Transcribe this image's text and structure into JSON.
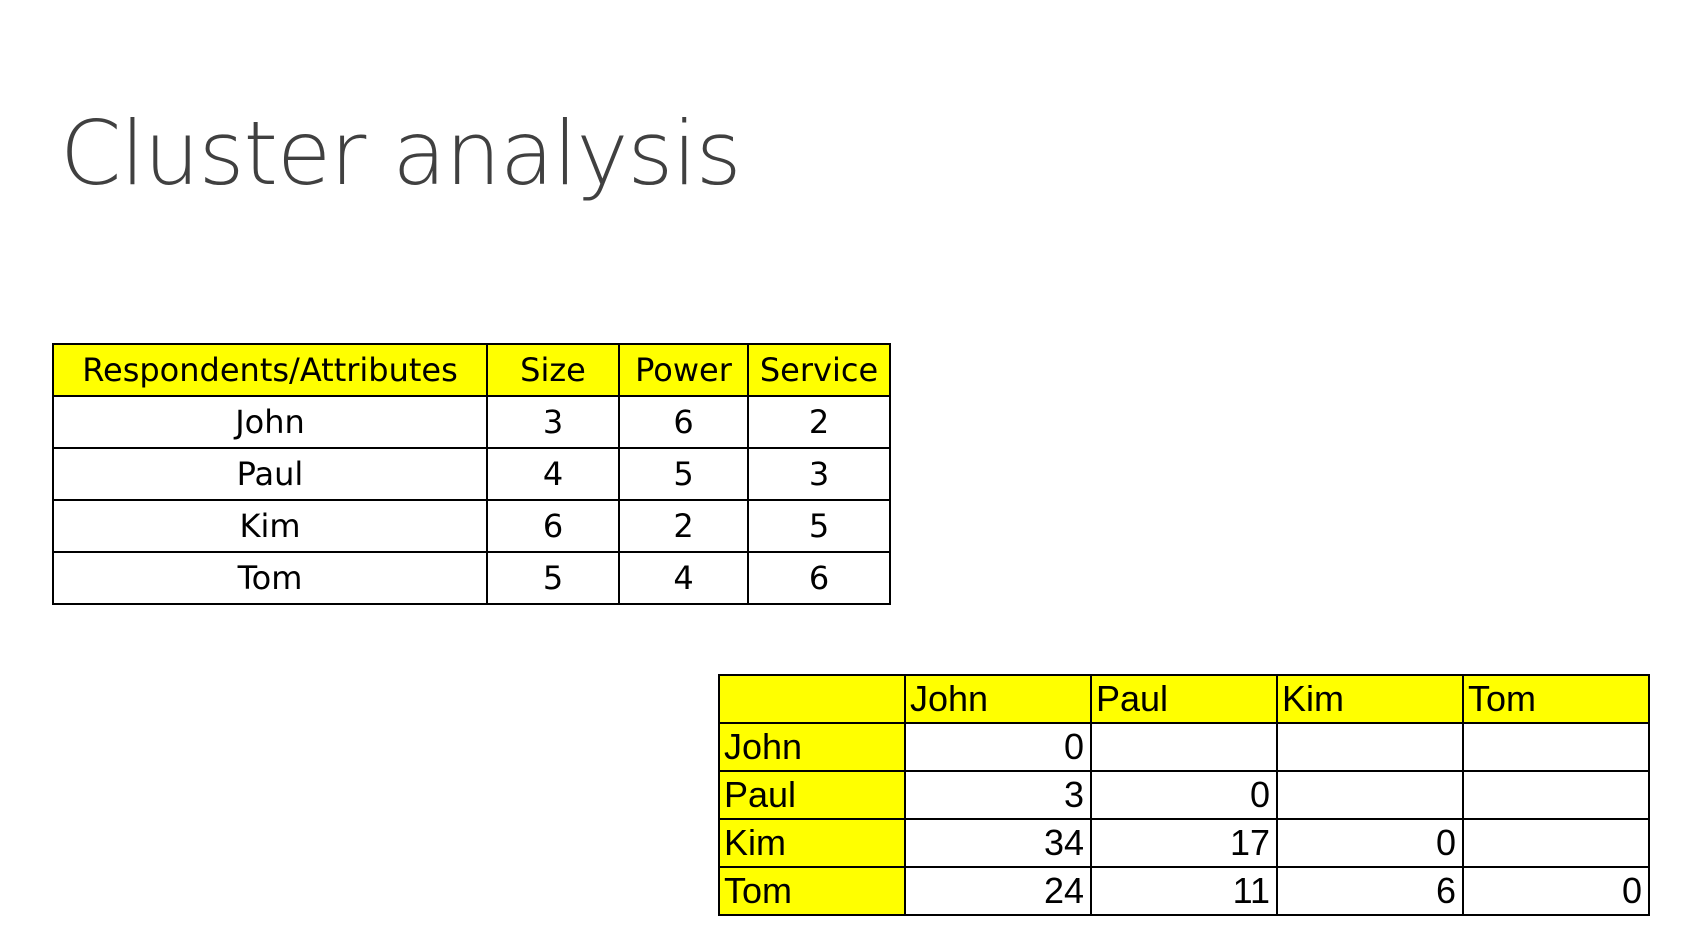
{
  "slide": {
    "title": "Cluster analysis"
  },
  "attributes_table": {
    "headers": [
      "Respondents/Attributes",
      "Size",
      "Power",
      "Service"
    ],
    "rows": [
      [
        "John",
        "3",
        "6",
        "2"
      ],
      [
        "Paul",
        "4",
        "5",
        "3"
      ],
      [
        "Kim",
        "6",
        "2",
        "5"
      ],
      [
        "Tom",
        "5",
        "4",
        "6"
      ]
    ],
    "header_color": "#ffff00"
  },
  "distance_table": {
    "corner": "",
    "headers": [
      "John",
      "Paul",
      "Kim",
      "Tom"
    ],
    "rows": [
      {
        "label": "John",
        "cells": [
          "0",
          "",
          "",
          ""
        ]
      },
      {
        "label": "Paul",
        "cells": [
          "3",
          "0",
          "",
          ""
        ]
      },
      {
        "label": "Kim",
        "cells": [
          "34",
          "17",
          "0",
          ""
        ]
      },
      {
        "label": "Tom",
        "cells": [
          "24",
          "11",
          "6",
          "0"
        ]
      }
    ],
    "header_color": "#ffff00"
  }
}
